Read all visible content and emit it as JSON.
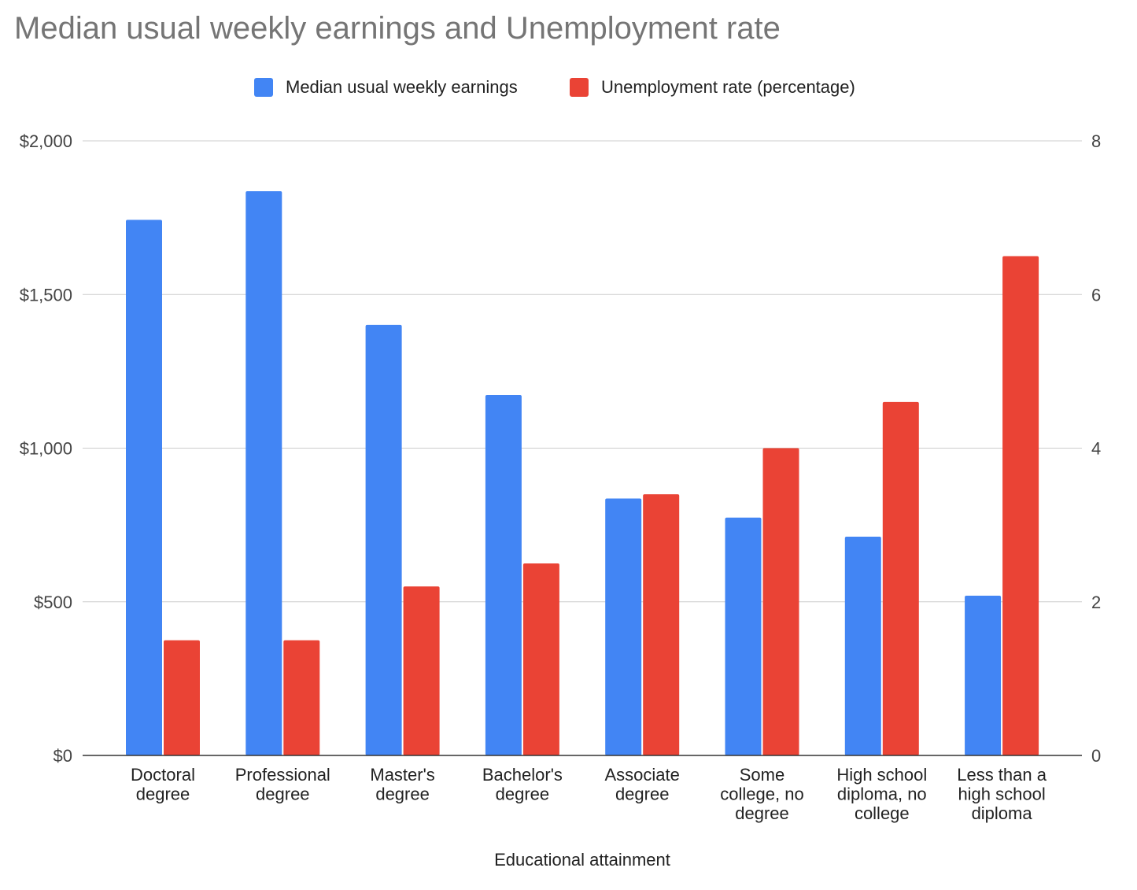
{
  "chart_data": {
    "type": "bar",
    "title": "Median usual weekly earnings and Unemployment rate",
    "xlabel": "Educational attainment",
    "categories": [
      [
        "Doctoral",
        "degree"
      ],
      [
        "Professional",
        "degree"
      ],
      [
        "Master's",
        "degree"
      ],
      [
        "Bachelor's",
        "degree"
      ],
      [
        "Associate",
        "degree"
      ],
      [
        "Some",
        "college, no",
        "degree"
      ],
      [
        "High school",
        "diploma, no",
        "college"
      ],
      [
        "Less than a",
        "high school",
        "diploma"
      ]
    ],
    "series": [
      {
        "name": "Median usual weekly earnings",
        "axis": "left",
        "color": "#4285f4",
        "values": [
          1743,
          1836,
          1401,
          1173,
          836,
          774,
          712,
          520
        ]
      },
      {
        "name": "Unemployment rate (percentage)",
        "axis": "right",
        "color": "#ea4335",
        "values": [
          1.5,
          1.5,
          2.2,
          2.5,
          3.4,
          4.0,
          4.6,
          6.5
        ]
      }
    ],
    "y_left": {
      "range": [
        0,
        2000
      ],
      "ticks": [
        "$0",
        "$500",
        "$1,000",
        "$1,500",
        "$2,000"
      ],
      "tick_values": [
        0,
        500,
        1000,
        1500,
        2000
      ]
    },
    "y_right": {
      "range": [
        0,
        8
      ],
      "ticks": [
        "0",
        "2",
        "4",
        "6",
        "8"
      ],
      "tick_values": [
        0,
        2,
        4,
        6,
        8
      ]
    },
    "grid": true,
    "legend_position": "top"
  }
}
